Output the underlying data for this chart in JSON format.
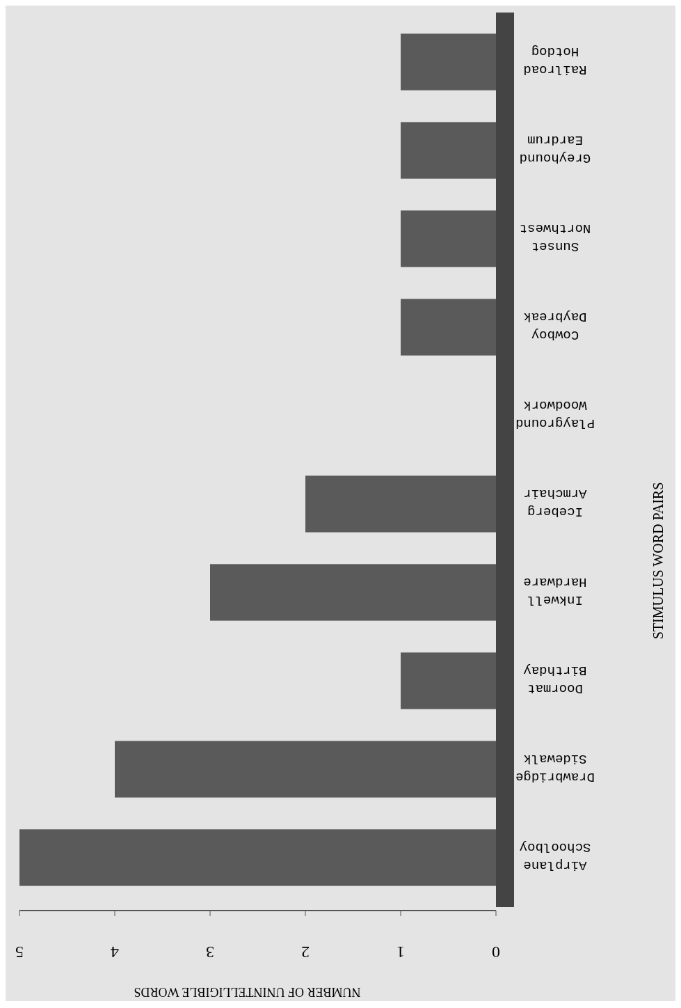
{
  "chart_data": {
    "type": "bar",
    "orientation": "horizontal",
    "xlabel": "NUMBER OF UNINTELLIGIBLE WORDS",
    "ylabel": "STIMULUS WORD PAIRS",
    "categories": [
      "Railroad Hotdog",
      "Greyhound Eardrum",
      "Sunset Northwest",
      "Cowboy Daybreak",
      "Playground Woodwork",
      "Iceberg Armchair",
      "Inkwell Hardware",
      "Doormat Birthday",
      "Drawbridge Sidewalk",
      "Airplane Schoolboy"
    ],
    "values": [
      1,
      1,
      1,
      1,
      0,
      2,
      3,
      1,
      4,
      5
    ],
    "color": "#5a5a5a",
    "xlim": [
      5,
      0
    ],
    "xticks": [
      5,
      4,
      3,
      2,
      1,
      0
    ]
  }
}
